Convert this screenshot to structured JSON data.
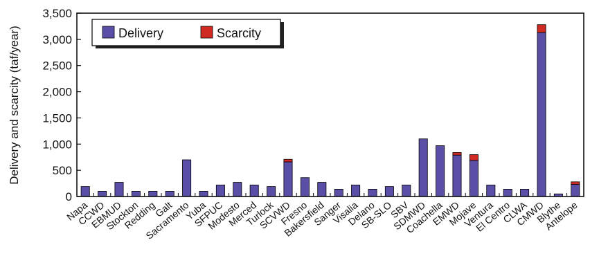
{
  "chart_data": {
    "type": "bar",
    "stacked": true,
    "ylabel": "Delivery and scarcity (taf/year)",
    "xlabel": "",
    "ylim": [
      0,
      3500
    ],
    "yticks": [
      0,
      500,
      1000,
      1500,
      2000,
      2500,
      3000,
      3500
    ],
    "ytick_labels": [
      "0",
      "500",
      "1,000",
      "1,500",
      "2,000",
      "2,500",
      "3,000",
      "3,500"
    ],
    "legend_position": "top-left",
    "grid": false,
    "colors": {
      "Delivery": "#5a4fa6",
      "Scarcity": "#d12a22"
    },
    "categories": [
      "Napa",
      "CCWD",
      "EBMUD",
      "Stockton",
      "Redding",
      "Galt",
      "Sacramento",
      "Yuba",
      "SFPUC",
      "Modesto",
      "Merced",
      "Turlock",
      "SCVWD",
      "Fresno",
      "Bakersfield",
      "Sanger",
      "Visalia",
      "Delano",
      "SB-SLO",
      "SBV",
      "SDMWD",
      "Coachella",
      "EMWD",
      "Mojave",
      "Ventura",
      "El Centro",
      "CLWA",
      "CMWD",
      "Blythe",
      "Antelope"
    ],
    "series": [
      {
        "name": "Delivery",
        "values": [
          190,
          100,
          270,
          100,
          100,
          100,
          700,
          100,
          220,
          270,
          220,
          190,
          660,
          360,
          270,
          140,
          220,
          140,
          190,
          220,
          1100,
          970,
          790,
          690,
          220,
          140,
          140,
          3130,
          50,
          230
        ]
      },
      {
        "name": "Scarcity",
        "values": [
          0,
          0,
          0,
          0,
          0,
          0,
          0,
          0,
          0,
          0,
          0,
          0,
          50,
          0,
          0,
          0,
          0,
          0,
          0,
          0,
          0,
          0,
          50,
          110,
          0,
          0,
          0,
          150,
          0,
          50
        ]
      }
    ]
  }
}
